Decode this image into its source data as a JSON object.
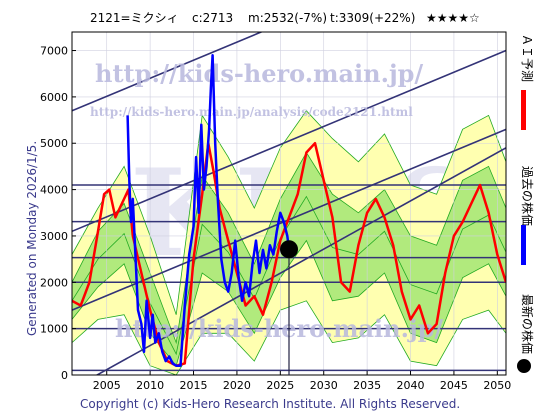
{
  "header": {
    "code_name": "2121=ミクシィ",
    "current": "c:2713",
    "medium": "m:2532(-7%)",
    "target": "t:3309(+22%)",
    "rating": "★★★★☆"
  },
  "watermark": {
    "url_large": "http://kids-hero.main.jp/",
    "url_small": "http://kids-hero.main.jp/analysis/code2121.html",
    "url_lower": "http://kids-hero.main.jp/",
    "big": "KIDS"
  },
  "generated": "Generated on Monday 2026/1/5.",
  "copyright": "Copyright (c) Kids-Hero Research Institute. All Rights Reserved.",
  "legend": {
    "forecast": "ＡＩ予測",
    "past": "過去の株価",
    "latest": "最新の株価"
  },
  "colors": {
    "forecast": "#ff0000",
    "past": "#0000ff",
    "band_outer": "#ffffb0",
    "band_inner": "#a8e878",
    "band_lines": "#22aa22",
    "trend": "#333377",
    "hline": "#333377",
    "latest": "#000000"
  },
  "chart_data": {
    "type": "line",
    "x_ticks": [
      2005,
      2010,
      2015,
      2020,
      2025,
      2030,
      2035,
      2040,
      2045,
      2050
    ],
    "y_ticks": [
      0,
      1000,
      2000,
      3000,
      4000,
      5000,
      6000,
      7000
    ],
    "xlim": [
      2001,
      2051
    ],
    "ylim": [
      0,
      7400
    ],
    "horizontal_lines": [
      100,
      1000,
      2000,
      2532,
      3309,
      4100
    ],
    "trend_lines": [
      {
        "x": [
          2001,
          2051
        ],
        "y": [
          -300,
          4900
        ]
      },
      {
        "x": [
          2001,
          2051
        ],
        "y": [
          1400,
          5300
        ]
      },
      {
        "x": [
          2001,
          2051
        ],
        "y": [
          3100,
          7000
        ]
      },
      {
        "x": [
          2001,
          2051
        ],
        "y": [
          5700,
          9600
        ]
      }
    ],
    "latest_point": {
      "x": 2026.0,
      "y": 2713
    },
    "past": {
      "name": "過去の株価",
      "x": [
        2007.4,
        2007.6,
        2007.8,
        2008.0,
        2008.3,
        2008.6,
        2009.0,
        2009.3,
        2009.6,
        2010.0,
        2010.3,
        2010.6,
        2011.0,
        2011.4,
        2011.8,
        2012.2,
        2012.6,
        2013.0,
        2013.5,
        2014.0,
        2014.5,
        2015.0,
        2015.3,
        2015.6,
        2015.9,
        2016.2,
        2016.5,
        2016.8,
        2017.0,
        2017.2,
        2017.5,
        2017.8,
        2018.2,
        2018.6,
        2019.0,
        2019.4,
        2019.8,
        2020.2,
        2020.6,
        2021.0,
        2021.4,
        2021.8,
        2022.2,
        2022.6,
        2023.0,
        2023.4,
        2023.8,
        2024.2,
        2024.6,
        2025.0,
        2025.4,
        2025.8,
        2026.0
      ],
      "y": [
        5600,
        4200,
        3300,
        3800,
        2600,
        1400,
        1100,
        500,
        1600,
        800,
        1300,
        700,
        900,
        500,
        300,
        400,
        250,
        200,
        200,
        1500,
        2600,
        3200,
        4700,
        3500,
        5400,
        4000,
        4500,
        5300,
        6200,
        6900,
        5000,
        3800,
        2500,
        2000,
        1800,
        2200,
        2900,
        2100,
        1600,
        2000,
        1700,
        2400,
        2900,
        2200,
        2700,
        2300,
        2800,
        2600,
        3100,
        3500,
        3300,
        3000,
        2713
      ]
    },
    "forecast": {
      "name": "ＡＩ予測",
      "x": [
        2001,
        2002,
        2003,
        2004,
        2004.7,
        2005.3,
        2006,
        2007,
        2007.5,
        2008,
        2009,
        2010,
        2011,
        2012,
        2013,
        2014,
        2015,
        2016,
        2016.7,
        2017.3,
        2018,
        2019,
        2020,
        2021,
        2022,
        2023,
        2024,
        2025,
        2026,
        2027,
        2028,
        2029,
        2030,
        2031,
        2032,
        2033,
        2034,
        2035,
        2036,
        2037,
        2038,
        2039,
        2040,
        2041,
        2042,
        2043,
        2044,
        2045,
        2046,
        2047,
        2048,
        2049,
        2050,
        2051
      ],
      "y": [
        1600,
        1500,
        2000,
        3100,
        3900,
        4000,
        3400,
        3800,
        4000,
        3000,
        2200,
        1400,
        700,
        300,
        200,
        250,
        2500,
        3900,
        5000,
        4400,
        3600,
        2900,
        2200,
        1500,
        1700,
        1300,
        2000,
        2900,
        3400,
        3900,
        4800,
        5000,
        4200,
        3400,
        2000,
        1800,
        2800,
        3500,
        3800,
        3400,
        2800,
        1800,
        1200,
        1500,
        900,
        1100,
        2200,
        3000,
        3300,
        3700,
        4100,
        3500,
        2600,
        2000
      ]
    },
    "band": {
      "x": [
        2001,
        2004,
        2007,
        2010,
        2013,
        2016,
        2019,
        2022,
        2025,
        2028,
        2031,
        2034,
        2037,
        2040,
        2043,
        2046,
        2049,
        2051
      ],
      "outer_low": [
        700,
        1200,
        1300,
        200,
        0,
        900,
        900,
        300,
        1400,
        1600,
        700,
        800,
        1300,
        300,
        200,
        1200,
        1400,
        900
      ],
      "outer_high": [
        2600,
        3600,
        4500,
        3000,
        1300,
        5600,
        4700,
        3600,
        4900,
        5700,
        5100,
        4600,
        5200,
        4100,
        3900,
        5300,
        5600,
        4600
      ],
      "inner_low": [
        1200,
        1900,
        2400,
        900,
        200,
        2200,
        1800,
        900,
        2100,
        2900,
        1600,
        1700,
        2200,
        900,
        700,
        2100,
        2400,
        1700
      ],
      "inner_high": [
        2000,
        3100,
        3700,
        2200,
        700,
        4300,
        3500,
        2400,
        3800,
        4800,
        3900,
        3500,
        4000,
        3000,
        2800,
        4200,
        4500,
        3600
      ]
    }
  }
}
